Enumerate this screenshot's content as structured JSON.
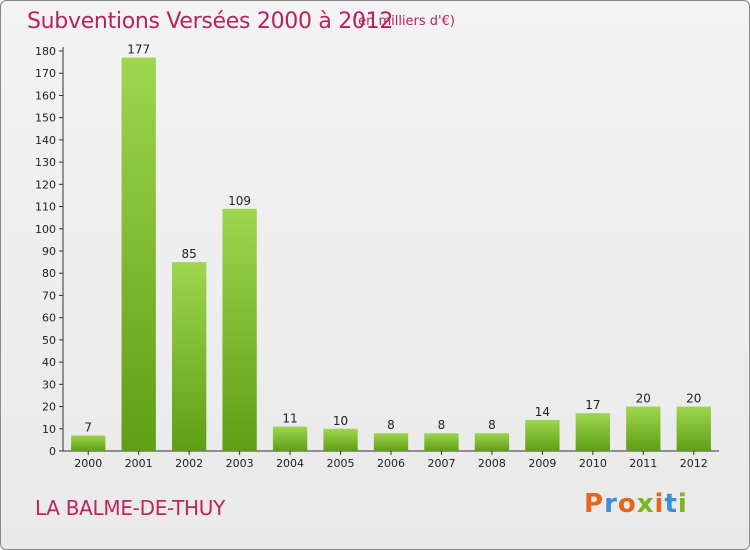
{
  "header": {
    "title": "Subventions Versées 2000 à 2012",
    "unit_note": "(en milliers d'€)"
  },
  "footer": {
    "commune": "LA BALME-DE-THUY",
    "logo_text": "Proxiti",
    "logo_colors": [
      "#e8641b",
      "#3a8fd6",
      "#e8641b",
      "#7ab51d",
      "#e8641b",
      "#3a8fd6",
      "#7ab51d"
    ]
  },
  "colors": {
    "title": "#b8215f",
    "bar_top": "#9ed64e",
    "bar_bottom": "#5f9e15"
  },
  "chart_data": {
    "type": "bar",
    "title": "Subventions Versées 2000 à 2012",
    "subtitle": "(en milliers d'€)",
    "categories": [
      "2000",
      "2001",
      "2002",
      "2003",
      "2004",
      "2005",
      "2006",
      "2007",
      "2008",
      "2009",
      "2010",
      "2011",
      "2012"
    ],
    "values": [
      7,
      177,
      85,
      109,
      11,
      10,
      8,
      8,
      8,
      14,
      17,
      20,
      20
    ],
    "ylim": [
      0,
      180
    ],
    "yticks": [
      0,
      10,
      20,
      30,
      40,
      50,
      60,
      70,
      80,
      90,
      100,
      110,
      120,
      130,
      140,
      150,
      160,
      170,
      180
    ],
    "grid": false,
    "legend": "none"
  }
}
